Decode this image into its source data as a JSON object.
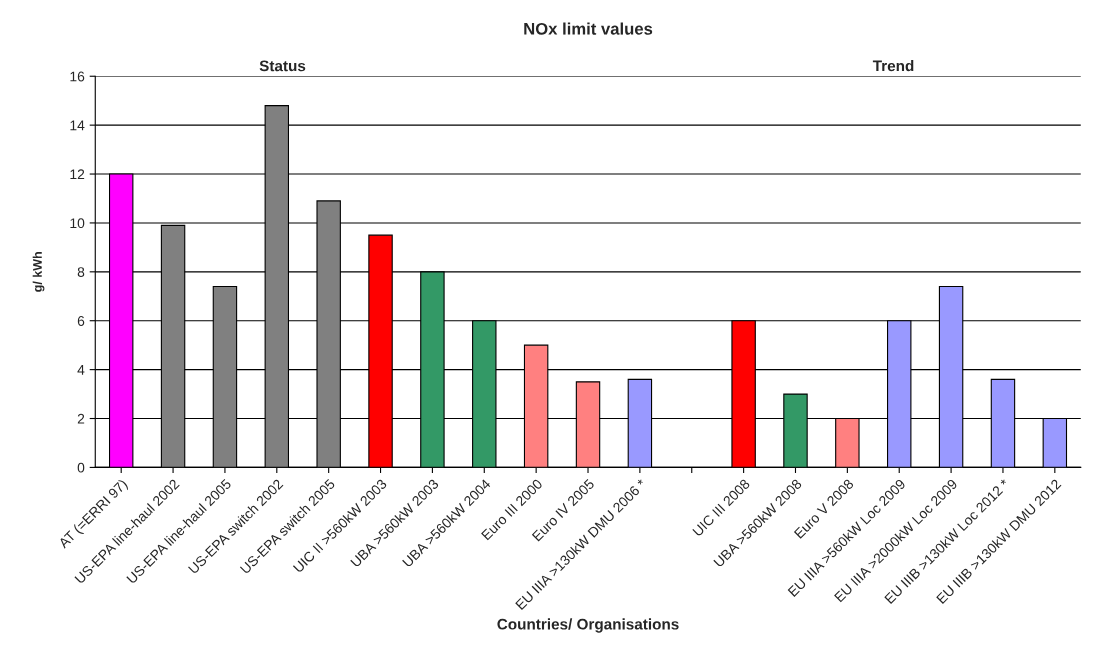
{
  "chart_data": {
    "type": "bar",
    "title": "NOx limit values",
    "xlabel": "Countries/ Organisations",
    "ylabel": "g/ kWh",
    "categories": [
      "AT (=ERRI 97)",
      "US-EPA line-haul 2002",
      "US-EPA line-haul 2005",
      "US-EPA switch 2002",
      "US-EPA switch 2005",
      "UIC II >560kW 2003",
      "UBA >560kW 2003",
      "UBA >560kW 2004",
      "Euro III 2000",
      "Euro IV 2005",
      "EU IIIA >130kW DMU 2006 *",
      null,
      "UIC III 2008",
      "UBA >560kW 2008",
      "Euro V 2008",
      "EU IIIA >560kW Loc 2009",
      "EU IIIA >2000kW Loc 2009",
      "EU IIIB >130kW Loc 2012 *",
      "EU IIIB >130kW DMU 2012"
    ],
    "values": [
      12,
      9.9,
      7.4,
      14.8,
      10.9,
      9.5,
      8,
      6,
      5,
      3.5,
      3.6,
      null,
      6,
      3,
      2,
      6,
      7.4,
      3.6,
      2
    ],
    "colors": [
      "#ff00ff",
      "#808080",
      "#808080",
      "#808080",
      "#808080",
      "#ff0000",
      "#339966",
      "#339966",
      "#ff8080",
      "#ff8080",
      "#9999ff",
      "#ffffff",
      "#ff0000",
      "#339966",
      "#ff8080",
      "#9999ff",
      "#9999ff",
      "#9999ff",
      "#9999ff"
    ],
    "ylim": [
      0,
      16
    ],
    "yticks": [
      0,
      2,
      4,
      6,
      8,
      10,
      12,
      14,
      16
    ],
    "grid": "y",
    "legend": false,
    "annotations": [
      "Status",
      "Trend"
    ]
  }
}
